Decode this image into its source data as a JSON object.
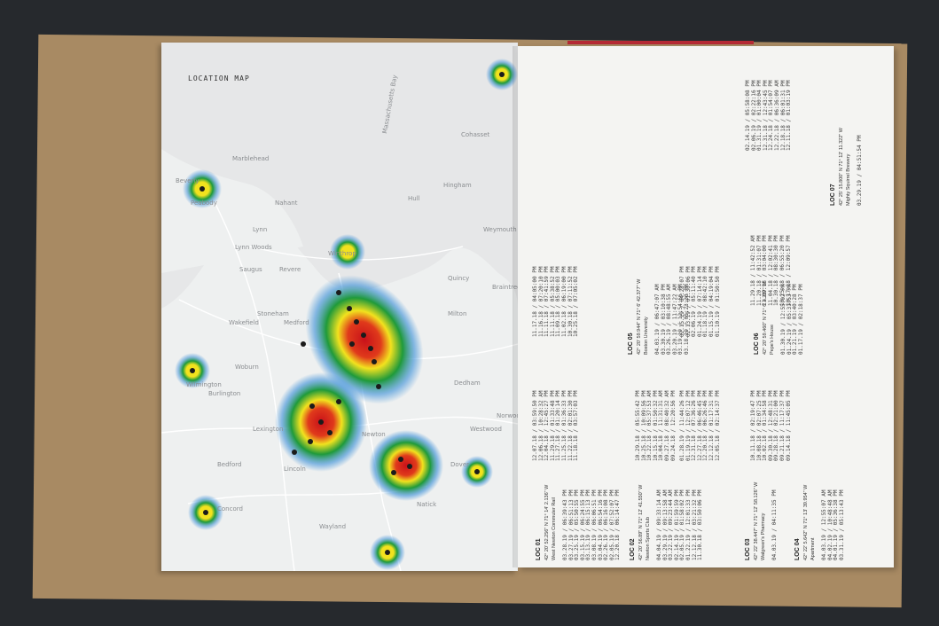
{
  "map_title": "LOCATION MAP",
  "place_labels": [
    {
      "id": "beverly",
      "text": "Beverly"
    },
    {
      "id": "peabody",
      "text": "Peabody"
    },
    {
      "id": "marblehead",
      "text": "Marblehead"
    },
    {
      "id": "lynn",
      "text": "Lynn"
    },
    {
      "id": "nahant",
      "text": "Nahant"
    },
    {
      "id": "saugus",
      "text": "Saugus"
    },
    {
      "id": "lynnwoods",
      "text": "Lynn Woods"
    },
    {
      "id": "revere",
      "text": "Revere"
    },
    {
      "id": "winthrop",
      "text": "Winthrop"
    },
    {
      "id": "medford",
      "text": "Medford"
    },
    {
      "id": "woburn",
      "text": "Woburn"
    },
    {
      "id": "wakefield",
      "text": "Wakefield"
    },
    {
      "id": "stoneham",
      "text": "Stoneham"
    },
    {
      "id": "wilmington",
      "text": "Wilmington"
    },
    {
      "id": "burlington",
      "text": "Burlington"
    },
    {
      "id": "lexington",
      "text": "Lexington"
    },
    {
      "id": "bedford",
      "text": "Bedford"
    },
    {
      "id": "concord",
      "text": "Concord"
    },
    {
      "id": "lincoln",
      "text": "Lincoln"
    },
    {
      "id": "wayland",
      "text": "Wayland"
    },
    {
      "id": "newton",
      "text": "Newton"
    },
    {
      "id": "natick",
      "text": "Natick"
    },
    {
      "id": "dover",
      "text": "Dover"
    },
    {
      "id": "westwood",
      "text": "Westwood"
    },
    {
      "id": "dedham",
      "text": "Dedham"
    },
    {
      "id": "milton",
      "text": "Milton"
    },
    {
      "id": "quincy",
      "text": "Quincy"
    },
    {
      "id": "weymouth",
      "text": "Weymouth"
    },
    {
      "id": "braintree",
      "text": "Braintree"
    },
    {
      "id": "norwood",
      "text": "Norwood"
    },
    {
      "id": "hull",
      "text": "Hull"
    },
    {
      "id": "hingham",
      "text": "Hingham"
    },
    {
      "id": "cohasset",
      "text": "Cohasset"
    },
    {
      "id": "massbay",
      "text": "Massachusetts Bay"
    }
  ],
  "locations": [
    {
      "id": "loc01",
      "title": "LOC 01",
      "coord": "42° 20' 52.256\" N 71° 14' 2.136\" W",
      "place": "West Newton Commuter Rail",
      "entries": [
        "03.28.19 / 06:39:43 PM",
        "03.27.19 / 06:51:13 PM",
        "03.25.19 / 05:50:55 PM",
        "03.15.19 / 06:24:55 PM",
        "03.13.19 / 06:15:13 PM",
        "03.08.19 / 06:06:51 PM",
        "03.04.19 / 06:54:16 PM",
        "02.26.19 / 06:16:08 PM",
        "02.05.19 / 07:52:07 PM",
        "12.20.18 / 06:14:47 PM"
      ]
    },
    {
      "id": "loc02",
      "title": "LOC 02",
      "coord": "42° 20' 56.89\" N 71° 12' 41.550\" W",
      "place": "Newton Sports Club",
      "entries": [
        "04.04.19 / 09:33:14 AM",
        "03.29.19 / 09:13:58 AM",
        "03.22.19 / 09:23:44 AM",
        "02.14.19 / 01:59:59 PM",
        "02.05.19 / 01:58:02 PM",
        "01.22.19 / 12:01:33 PM",
        "12.12.18 / 03:21:32 PM",
        "11.30.18 / 03:50:06 PM"
      ]
    },
    {
      "id": "loc03",
      "title": "LOC 03",
      "coord": "42° 22' 38.447\" N 71° 12' 58.126\" W",
      "place": "Walgreen's Pharmacy",
      "entries": [
        "04.03.19 / 04:11:35 PM"
      ]
    },
    {
      "id": "loc04",
      "title": "LOC 04",
      "coord": "42° 22' 5.642\" N 71° 13' 39.954\" W",
      "place": "Apartment",
      "entries": [
        "04.03.19 / 12:55:07 AM",
        "04.02.19 / 10:48:48 AM",
        "04.01.19 / 05:36:38 PM",
        "03.31.19 / 05:13:43 PM"
      ]
    },
    {
      "id": "loc05",
      "title": "LOC 05",
      "coord": "42° 20' 59.944\" N 71° 6' 42.377\" W",
      "place": "Boston University",
      "entries": [
        "04.03.19 / 06:47:07 AM",
        "03.30.19 / 03:10:38 PM",
        "03.26.19 / 08:48:55 AM",
        "03.20.19 / 11:47:22 AM",
        "03.19.19 / 12:54:56 PM",
        "03.18.19 / 05:23:30 PM"
      ]
    },
    {
      "id": "loc06",
      "title": "LOC 06",
      "coord": "42° 20' 59.460\" N 71° 6' 4.237\" W",
      "place": "Pepe's House",
      "entries": [
        "01.30.19 / 12:55:02 PM",
        "01.24.19 / 05:31:53 PM",
        "01.21.19 / 03:40:28 PM",
        "01.17.19 / 02:18:37 PM"
      ]
    },
    {
      "id": "loc07",
      "title": "LOC 07",
      "coord": "42° 25' 15.800\" N 71° 12' 11.322\" W",
      "place": "Mighty Squirrel Brewery",
      "entries": [
        "03.29.19 / 04:51:54 PM"
      ]
    }
  ],
  "extra_columns": [
    [
      "11.17.18 / 04:05:00 PM",
      "11.16.18 / 07:20:10 PM",
      "11.11.18 / 07:41:59 PM",
      "11.11.18 / 05:38:52 PM",
      "11.09.18 / 05:00:03 PM",
      "11.02.18 / 06:19:00 PM",
      "10.30.18 / 07:11:52 PM",
      "10.25.18 / 07:05:02 PM"
    ],
    [
      "12.07.18 / 03:59:50 PM",
      "12.06.18 / 10:28:32 AM",
      "12.04.18 / 12:45:27 PM",
      "11.29.18 / 01:33:48 PM",
      "11.27.18 / 01:20:14 PM",
      "11.25.18 / 01:36:33 PM",
      "11.22.18 / 02:01:30 PM",
      "11.18.18 / 03:57:03 PM"
    ],
    [
      "10.29.18 / 05:55:42 PM",
      "10.25.18 / 10:09:56 PM",
      "10.22.18 / 05:37:53 AM",
      "10.15.18 / 01:50:32 PM",
      "10.04.18 / 11:31:31 AM",
      "09.27.18 / 08:40:32 AM",
      "09.24.18 / 12:20:56 PM"
    ],
    [
      "02.14.19 / 05:58:08 PM",
      "02.06.19 / 02:22:16 PM",
      "01.31.19 / 01:00:04 PM",
      "12.31.18 / 12:43:45 PM",
      "12.24.18 / 01:54:07 PM",
      "12.22.18 / 06:36:09 AM",
      "12.18.18 / 06:01:31 PM",
      "12.11.18 / 01:03:19 PM"
    ],
    [
      "11.29.18 / 11:42:52 AM",
      "11.20.18 / 01:31:07 PM",
      "11.09.18 / 03:04:00 PM",
      "11.04.18 / 12:02:41 PM",
      "10.30.18 / 08:30:30 PM",
      "10.25.18 / 06:55:20 PM",
      "10.17.18 / 12:09:57 PM"
    ],
    [
      "10.11.18 / 02:19:47 PM",
      "10.08.18 / 02:07:25 PM",
      "10.02.18 / 01:34:58 PM",
      "09.30.18 / 12:48:31 PM",
      "09.28.18 / 02:21:00 PM",
      "09.21.18 / 11:17:37 PM",
      "09.14.18 / 11:45:05 PM"
    ],
    [
      "02.15.19 / 04:28:07 PM",
      "02.13.19 / 01:30:06 PM",
      "02.06.19 / 05:11:40 PM",
      "01.24.19 / 07:14:14 PM",
      "01.18.19 / 08:42:10 PM",
      "01.15.19 / 04:19:04 PM",
      "01.10.19 / 01:50:50 PM"
    ],
    [
      "01.28.19 / 11:44:26 PM",
      "01.19.19 / 12:07:12 PM",
      "12.31.18 / 07:36:26 PM",
      "12.27.18 / 06:46:45 PM",
      "12.20.18 / 06:26:46 PM",
      "12.12.18 / 01:17:31 PM",
      "12.05.18 / 02:14:37 PM"
    ]
  ],
  "colors": {
    "heat_red": "#d81e1e",
    "heat_yellow": "#f2e21e",
    "heat_green": "#1f9a3a",
    "heat_blue": "#3a8fd8",
    "board": "#a88a63",
    "map_bg": "#e9eaea",
    "water": "#d8dadc"
  }
}
